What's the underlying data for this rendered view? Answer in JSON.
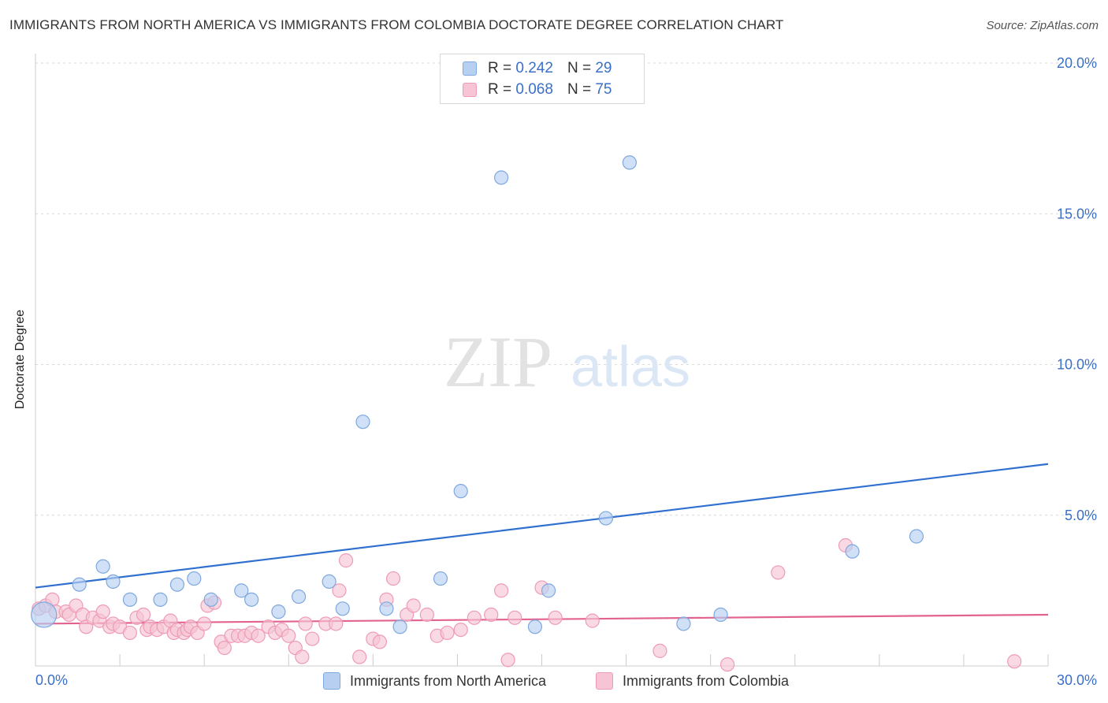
{
  "title": "IMMIGRANTS FROM NORTH AMERICA VS IMMIGRANTS FROM COLOMBIA DOCTORATE DEGREE CORRELATION CHART",
  "source": "Source: ZipAtlas.com",
  "watermark": {
    "zip": "ZIP",
    "atlas": "atlas"
  },
  "legend": {
    "series1": {
      "r_label": "R =",
      "r_value": "0.242",
      "n_label": "N =",
      "n_value": "29"
    },
    "series2": {
      "r_label": "R =",
      "r_value": "0.068",
      "n_label": "N =",
      "n_value": "75"
    }
  },
  "colors": {
    "blue_fill": "#b7d0f2",
    "blue_stroke": "#7fa8de",
    "blue_line": "#2f6fcf",
    "pink_fill": "#f6c4d4",
    "pink_stroke": "#ee9bb6",
    "pink_line": "#e26390",
    "axis_text": "#3a6fc8",
    "grid": "#d9d9d9"
  },
  "chart_data": {
    "type": "scatter",
    "title": "IMMIGRANTS FROM NORTH AMERICA VS IMMIGRANTS FROM COLOMBIA DOCTORATE DEGREE CORRELATION CHART",
    "xlabel": "",
    "ylabel": "Doctorate Degree",
    "xlim": [
      0,
      30
    ],
    "ylim": [
      0,
      20
    ],
    "x_tick_labels": [
      "0.0%",
      "30.0%"
    ],
    "y_ticks": [
      5,
      10,
      15,
      20
    ],
    "y_tick_labels": [
      "5.0%",
      "10.0%",
      "15.0%",
      "20.0%"
    ],
    "series": [
      {
        "name": "Immigrants from North America",
        "color": "#b7d0f2",
        "r": 0.242,
        "n": 29,
        "trend": {
          "x": [
            0,
            30
          ],
          "y": [
            2.6,
            6.7
          ]
        },
        "points": [
          {
            "x": 0.25,
            "y": 1.7,
            "big": true
          },
          {
            "x": 1.3,
            "y": 2.7
          },
          {
            "x": 2.0,
            "y": 3.3
          },
          {
            "x": 2.3,
            "y": 2.8
          },
          {
            "x": 2.8,
            "y": 2.2
          },
          {
            "x": 3.7,
            "y": 2.2
          },
          {
            "x": 4.2,
            "y": 2.7
          },
          {
            "x": 4.7,
            "y": 2.9
          },
          {
            "x": 5.2,
            "y": 2.2
          },
          {
            "x": 6.1,
            "y": 2.5
          },
          {
            "x": 6.4,
            "y": 2.2
          },
          {
            "x": 7.2,
            "y": 1.8
          },
          {
            "x": 7.8,
            "y": 2.3
          },
          {
            "x": 8.7,
            "y": 2.8
          },
          {
            "x": 9.1,
            "y": 1.9
          },
          {
            "x": 9.7,
            "y": 8.1
          },
          {
            "x": 10.4,
            "y": 1.9
          },
          {
            "x": 10.8,
            "y": 1.3
          },
          {
            "x": 12.0,
            "y": 2.9
          },
          {
            "x": 12.6,
            "y": 5.8
          },
          {
            "x": 13.8,
            "y": 16.2
          },
          {
            "x": 14.8,
            "y": 1.3
          },
          {
            "x": 15.2,
            "y": 2.5
          },
          {
            "x": 16.9,
            "y": 4.9
          },
          {
            "x": 17.6,
            "y": 16.7
          },
          {
            "x": 19.2,
            "y": 1.4
          },
          {
            "x": 20.3,
            "y": 1.7
          },
          {
            "x": 24.2,
            "y": 3.8
          },
          {
            "x": 26.1,
            "y": 4.3
          }
        ]
      },
      {
        "name": "Immigrants from Colombia",
        "color": "#f6c4d4",
        "r": 0.068,
        "n": 75,
        "trend": {
          "x": [
            0,
            30
          ],
          "y": [
            1.4,
            1.7
          ]
        },
        "points": [
          {
            "x": 0.1,
            "y": 1.9
          },
          {
            "x": 0.3,
            "y": 2.0
          },
          {
            "x": 0.5,
            "y": 2.2
          },
          {
            "x": 0.6,
            "y": 1.8
          },
          {
            "x": 0.9,
            "y": 1.8
          },
          {
            "x": 1.0,
            "y": 1.7
          },
          {
            "x": 1.2,
            "y": 2.0
          },
          {
            "x": 1.4,
            "y": 1.7
          },
          {
            "x": 1.5,
            "y": 1.3
          },
          {
            "x": 1.7,
            "y": 1.6
          },
          {
            "x": 1.9,
            "y": 1.5
          },
          {
            "x": 2.0,
            "y": 1.8
          },
          {
            "x": 2.2,
            "y": 1.3
          },
          {
            "x": 2.3,
            "y": 1.4
          },
          {
            "x": 2.5,
            "y": 1.3
          },
          {
            "x": 2.8,
            "y": 1.1
          },
          {
            "x": 3.0,
            "y": 1.6
          },
          {
            "x": 3.2,
            "y": 1.7
          },
          {
            "x": 3.3,
            "y": 1.2
          },
          {
            "x": 3.4,
            "y": 1.3
          },
          {
            "x": 3.6,
            "y": 1.2
          },
          {
            "x": 3.8,
            "y": 1.3
          },
          {
            "x": 4.0,
            "y": 1.5
          },
          {
            "x": 4.1,
            "y": 1.1
          },
          {
            "x": 4.2,
            "y": 1.2
          },
          {
            "x": 4.4,
            "y": 1.1
          },
          {
            "x": 4.5,
            "y": 1.2
          },
          {
            "x": 4.6,
            "y": 1.3
          },
          {
            "x": 4.8,
            "y": 1.1
          },
          {
            "x": 5.0,
            "y": 1.4
          },
          {
            "x": 5.1,
            "y": 2.0
          },
          {
            "x": 5.3,
            "y": 2.1
          },
          {
            "x": 5.5,
            "y": 0.8
          },
          {
            "x": 5.6,
            "y": 0.6
          },
          {
            "x": 5.8,
            "y": 1.0
          },
          {
            "x": 6.0,
            "y": 1.0
          },
          {
            "x": 6.2,
            "y": 1.0
          },
          {
            "x": 6.4,
            "y": 1.1
          },
          {
            "x": 6.6,
            "y": 1.0
          },
          {
            "x": 6.9,
            "y": 1.3
          },
          {
            "x": 7.1,
            "y": 1.1
          },
          {
            "x": 7.3,
            "y": 1.2
          },
          {
            "x": 7.5,
            "y": 1.0
          },
          {
            "x": 7.7,
            "y": 0.6
          },
          {
            "x": 7.9,
            "y": 0.3
          },
          {
            "x": 8.0,
            "y": 1.4
          },
          {
            "x": 8.2,
            "y": 0.9
          },
          {
            "x": 8.6,
            "y": 1.4
          },
          {
            "x": 8.9,
            "y": 1.4
          },
          {
            "x": 9.0,
            "y": 2.5
          },
          {
            "x": 9.2,
            "y": 3.5
          },
          {
            "x": 9.6,
            "y": 0.3
          },
          {
            "x": 10.0,
            "y": 0.9
          },
          {
            "x": 10.2,
            "y": 0.8
          },
          {
            "x": 10.4,
            "y": 2.2
          },
          {
            "x": 10.6,
            "y": 2.9
          },
          {
            "x": 11.0,
            "y": 1.7
          },
          {
            "x": 11.2,
            "y": 2.0
          },
          {
            "x": 11.6,
            "y": 1.7
          },
          {
            "x": 11.9,
            "y": 1.0
          },
          {
            "x": 12.2,
            "y": 1.1
          },
          {
            "x": 12.6,
            "y": 1.2
          },
          {
            "x": 13.0,
            "y": 1.6
          },
          {
            "x": 13.5,
            "y": 1.7
          },
          {
            "x": 13.8,
            "y": 2.5
          },
          {
            "x": 14.0,
            "y": 0.2
          },
          {
            "x": 14.2,
            "y": 1.6
          },
          {
            "x": 15.0,
            "y": 2.6
          },
          {
            "x": 15.4,
            "y": 1.6
          },
          {
            "x": 16.5,
            "y": 1.5
          },
          {
            "x": 18.5,
            "y": 0.5
          },
          {
            "x": 20.5,
            "y": 0.05
          },
          {
            "x": 22.0,
            "y": 3.1
          },
          {
            "x": 24.0,
            "y": 4.0
          },
          {
            "x": 29.0,
            "y": 0.15
          }
        ]
      }
    ]
  }
}
